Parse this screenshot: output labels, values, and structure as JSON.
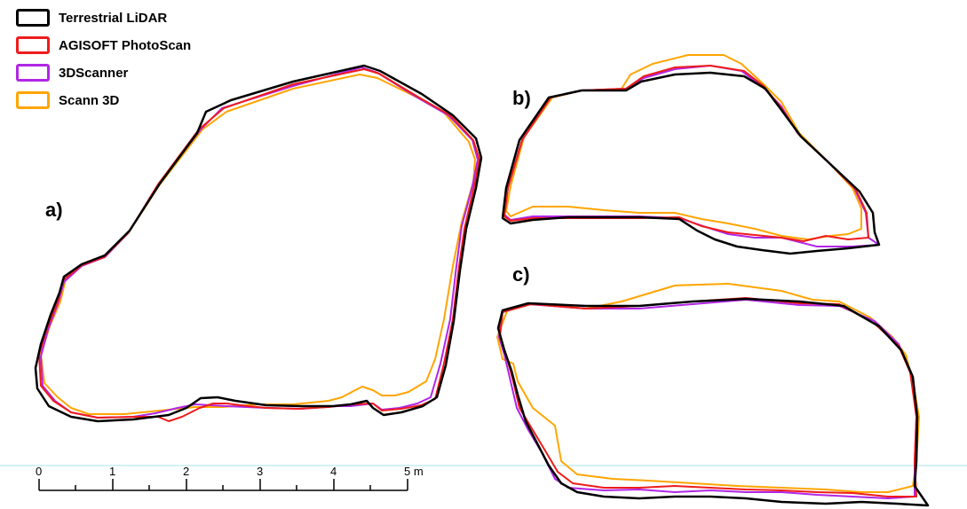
{
  "legend": {
    "items": [
      {
        "label": "Terrestrial LiDAR",
        "color": "#000000"
      },
      {
        "label": "AGISOFT PhotoScan",
        "color": "#ee1c1c"
      },
      {
        "label": "3DScanner",
        "color": "#b126e6"
      },
      {
        "label": "Scann 3D",
        "color": "#ffa500"
      }
    ]
  },
  "panels": {
    "a": "a)",
    "b": "b)",
    "c": "c)"
  },
  "scale_bar": {
    "labels": [
      "0",
      "1",
      "2",
      "3",
      "4",
      "5 m"
    ]
  },
  "colors": {
    "guide_line": "#a8e4ec"
  }
}
